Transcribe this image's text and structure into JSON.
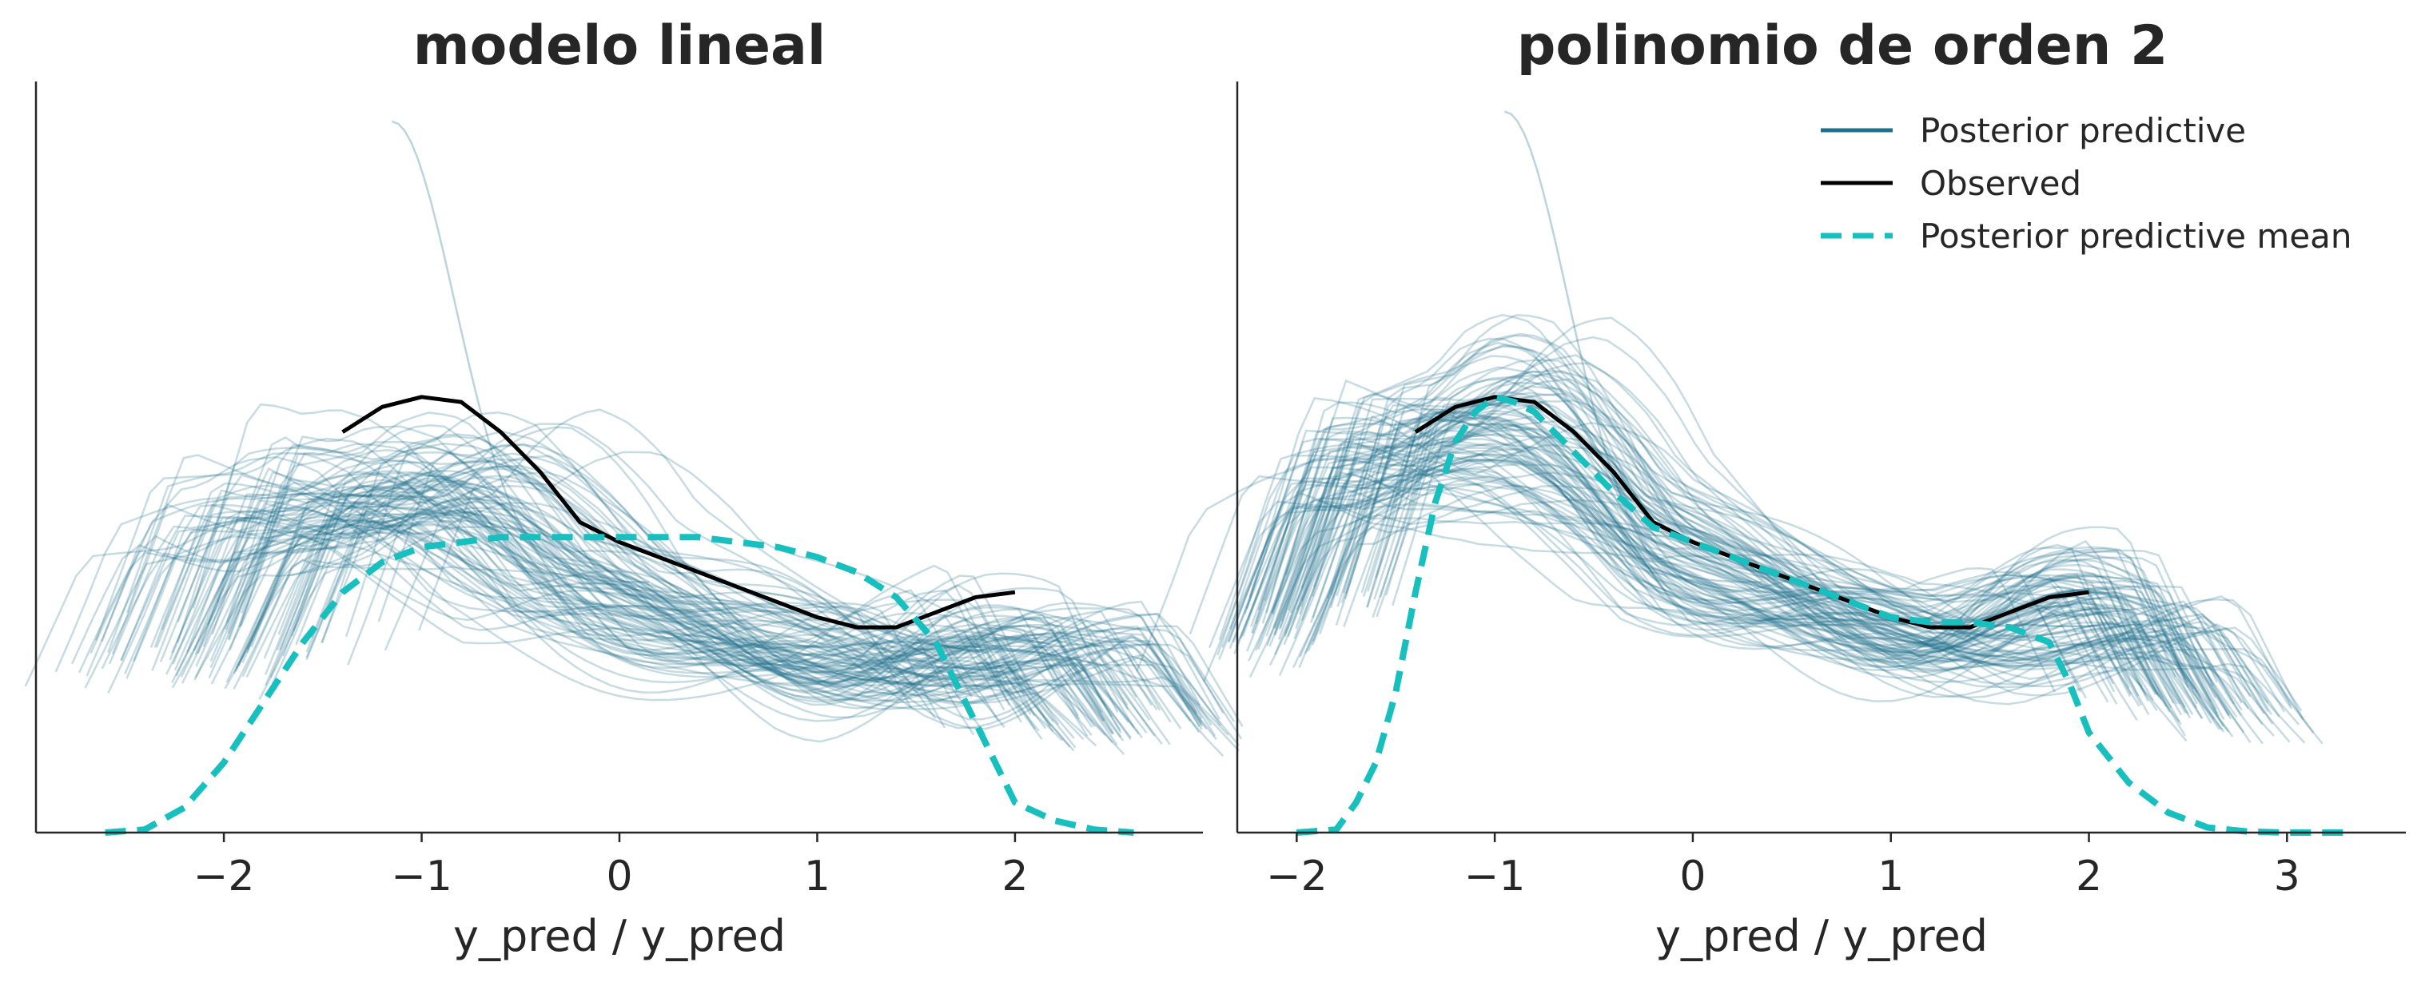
{
  "colors": {
    "posterior_predictive": "#1f6f8b",
    "observed": "#000000",
    "posterior_mean": "#17bfbf"
  },
  "chart_data": [
    {
      "type": "line",
      "title": "modelo lineal",
      "xlabel": "y_pred / y_pred",
      "ylabel": "",
      "xlim": [
        -2.95,
        2.95
      ],
      "ylim": [
        0,
        0.75
      ],
      "xticks": [
        -2,
        -1,
        0,
        1,
        2
      ],
      "xtick_labels": [
        "−2",
        "−1",
        "0",
        "1",
        "2"
      ],
      "legend": null,
      "posterior_predictive": {
        "n_samples": 100,
        "x_range": [
          -2.6,
          2.7
        ],
        "center_shift_sd": 0.33,
        "scale_range": [
          0.85,
          1.15
        ],
        "peak_density_range": [
          0.2,
          0.45
        ],
        "outlier_peak": 0.71
      },
      "series": [
        {
          "name": "Observed",
          "x": [
            -1.4,
            -1.2,
            -1.0,
            -0.8,
            -0.6,
            -0.4,
            -0.2,
            0.0,
            0.2,
            0.4,
            0.6,
            0.8,
            1.0,
            1.2,
            1.4,
            1.6,
            1.8,
            2.0
          ],
          "y": [
            0.4,
            0.425,
            0.435,
            0.43,
            0.4,
            0.36,
            0.31,
            0.29,
            0.275,
            0.26,
            0.245,
            0.23,
            0.215,
            0.205,
            0.205,
            0.22,
            0.235,
            0.24
          ]
        },
        {
          "name": "Posterior predictive mean",
          "x": [
            -2.6,
            -2.4,
            -2.2,
            -2.0,
            -1.8,
            -1.6,
            -1.4,
            -1.2,
            -1.0,
            -0.8,
            -0.6,
            -0.4,
            -0.2,
            0.0,
            0.2,
            0.4,
            0.6,
            0.8,
            1.0,
            1.2,
            1.4,
            1.6,
            1.8,
            2.0,
            2.2,
            2.4,
            2.6
          ],
          "y": [
            0.0,
            0.003,
            0.025,
            0.07,
            0.13,
            0.19,
            0.24,
            0.27,
            0.285,
            0.29,
            0.295,
            0.295,
            0.295,
            0.295,
            0.295,
            0.295,
            0.29,
            0.285,
            0.275,
            0.26,
            0.235,
            0.19,
            0.11,
            0.03,
            0.012,
            0.003,
            0.0
          ]
        }
      ]
    },
    {
      "type": "line",
      "title": "polinomio de orden 2",
      "xlabel": "y_pred / y_pred",
      "ylabel": "",
      "xlim": [
        -2.3,
        3.6
      ],
      "ylim": [
        0,
        0.75
      ],
      "xticks": [
        -2,
        -1,
        0,
        1,
        2,
        3
      ],
      "xtick_labels": [
        "−2",
        "−1",
        "0",
        "1",
        "2",
        "3"
      ],
      "legend": {
        "placement": "top-right",
        "entries": [
          "Posterior predictive",
          "Observed",
          "Posterior predictive mean"
        ]
      },
      "posterior_predictive": {
        "n_samples": 100,
        "x_range": [
          -2.0,
          3.3
        ],
        "center_shift_sd": 0.12,
        "scale_range": [
          0.85,
          1.2
        ],
        "peak_density_range": [
          0.35,
          0.72
        ],
        "outlier_peak": 0.72
      },
      "series": [
        {
          "name": "Observed",
          "x": [
            -1.4,
            -1.2,
            -1.0,
            -0.8,
            -0.6,
            -0.4,
            -0.2,
            0.0,
            0.2,
            0.4,
            0.6,
            0.8,
            1.0,
            1.2,
            1.4,
            1.6,
            1.8,
            2.0
          ],
          "y": [
            0.4,
            0.425,
            0.435,
            0.43,
            0.4,
            0.36,
            0.31,
            0.29,
            0.275,
            0.26,
            0.245,
            0.23,
            0.215,
            0.205,
            0.205,
            0.22,
            0.235,
            0.24
          ]
        },
        {
          "name": "Posterior predictive mean",
          "x": [
            -2.0,
            -1.8,
            -1.7,
            -1.6,
            -1.5,
            -1.4,
            -1.3,
            -1.2,
            -1.1,
            -1.0,
            -0.9,
            -0.8,
            -0.6,
            -0.4,
            -0.2,
            0.0,
            0.2,
            0.4,
            0.6,
            0.8,
            1.0,
            1.2,
            1.4,
            1.6,
            1.8,
            1.9,
            2.0,
            2.2,
            2.4,
            2.6,
            2.8,
            3.0,
            3.3
          ],
          "y": [
            0.0,
            0.003,
            0.03,
            0.07,
            0.14,
            0.24,
            0.33,
            0.39,
            0.42,
            0.435,
            0.43,
            0.42,
            0.38,
            0.34,
            0.305,
            0.29,
            0.275,
            0.26,
            0.245,
            0.23,
            0.215,
            0.21,
            0.21,
            0.205,
            0.19,
            0.15,
            0.1,
            0.05,
            0.02,
            0.005,
            0.001,
            0.0,
            0.0
          ]
        }
      ]
    }
  ]
}
